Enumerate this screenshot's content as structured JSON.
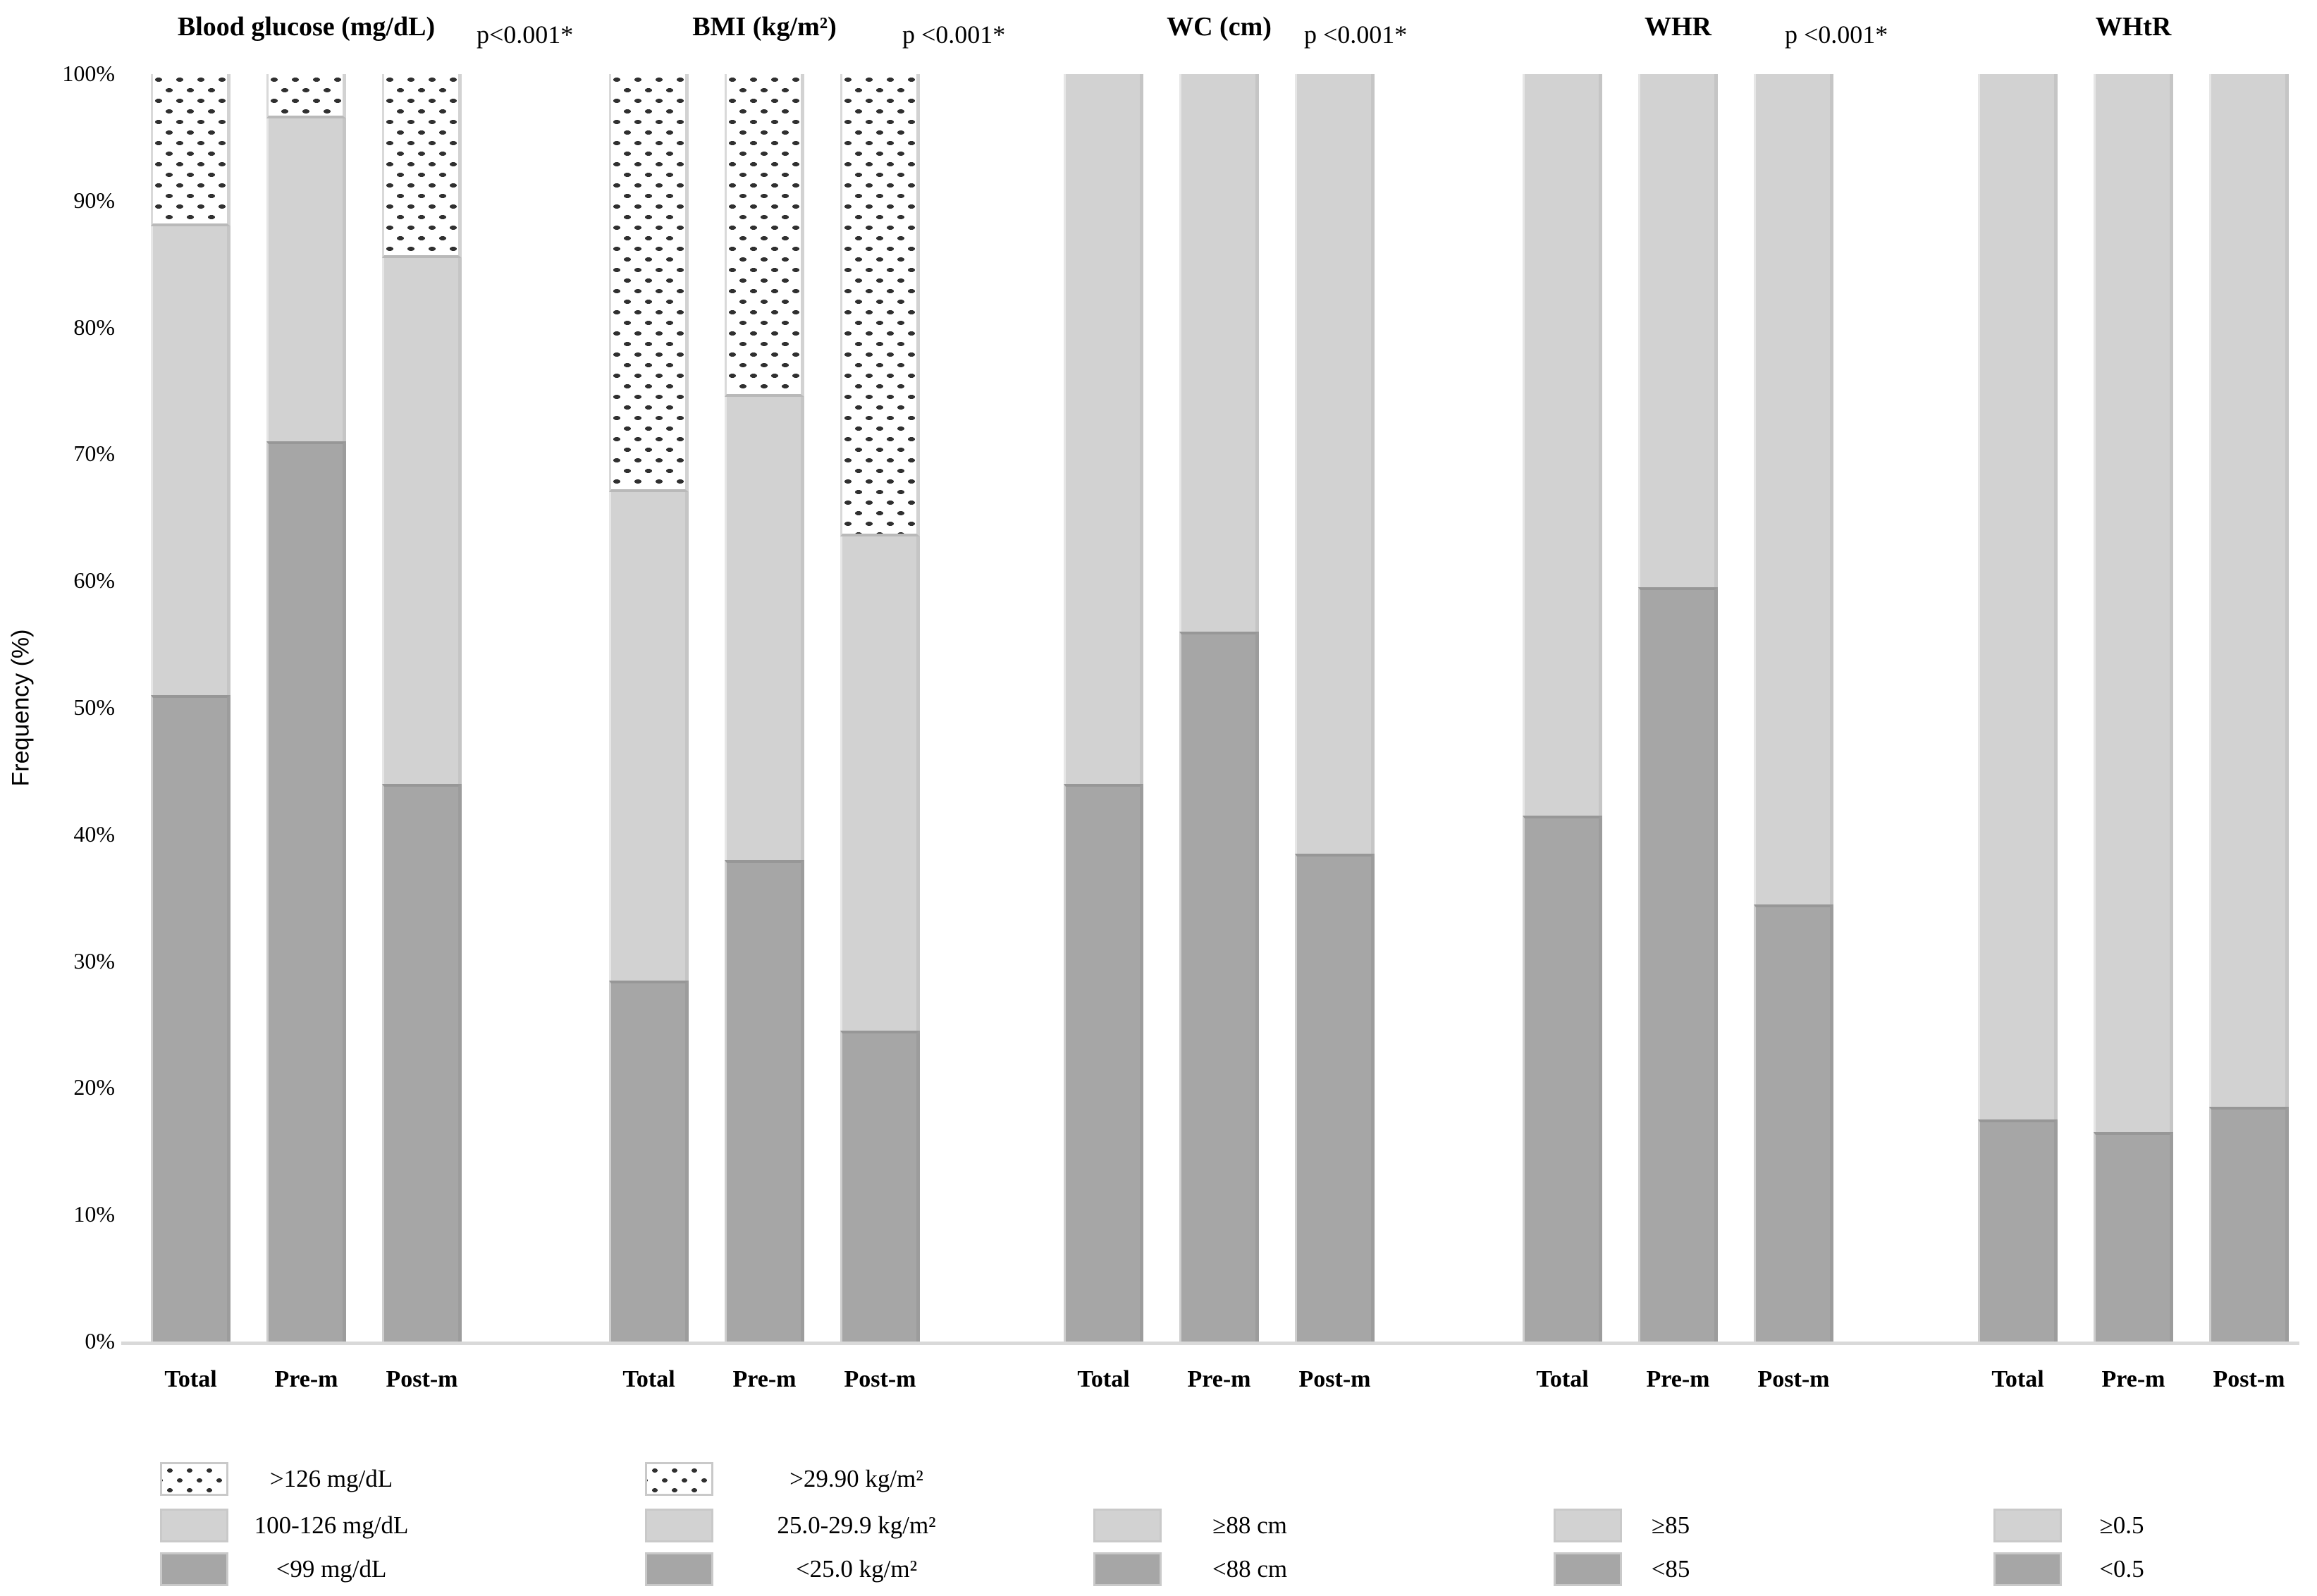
{
  "chart_data": {
    "type": "bar",
    "stacked": true,
    "title": "",
    "xlabel": "",
    "ylabel": "Frequency (%)",
    "ylim": [
      0,
      100
    ],
    "grid": false,
    "legend_position": "bottom",
    "ytick_labels": [
      "100%",
      "90%",
      "80%",
      "70%",
      "60%",
      "50%",
      "40%",
      "30%",
      "20%",
      "10%",
      "0%"
    ],
    "categories": [
      "Total",
      "Pre-m",
      "Post-m"
    ],
    "panels": [
      {
        "title": "Blood glucose (mg/dL)",
        "p_value": "p<0.001*",
        "series": [
          {
            "name": "<99 mg/dL",
            "style": "dark",
            "values": [
              51,
              71,
              44
            ]
          },
          {
            "name": "100-126 mg/dL",
            "style": "light",
            "values": [
              37,
              25.5,
              41.5
            ]
          },
          {
            "name": ">126 mg/dL",
            "style": "dotted",
            "values": [
              12,
              3.5,
              14.5
            ]
          }
        ]
      },
      {
        "title": "BMI (kg/m²)",
        "p_value": "p <0.001*",
        "series": [
          {
            "name": "<25.0 kg/m²",
            "style": "dark",
            "values": [
              28.5,
              38,
              24.5
            ]
          },
          {
            "name": "25.0-29.9 kg/m²",
            "style": "light",
            "values": [
              38.5,
              36.5,
              39
            ]
          },
          {
            "name": ">29.90 kg/m²",
            "style": "dotted",
            "values": [
              33,
              25.5,
              36.5
            ]
          }
        ]
      },
      {
        "title": "WC (cm)",
        "p_value": "p <0.001*",
        "series": [
          {
            "name": "<88 cm",
            "style": "dark",
            "values": [
              44,
              56,
              38.5
            ]
          },
          {
            "name": "≥88 cm",
            "style": "light",
            "values": [
              56,
              44,
              61.5
            ]
          }
        ]
      },
      {
        "title": "WHR",
        "p_value": "p <0.001*",
        "series": [
          {
            "name": "<85",
            "style": "dark",
            "values": [
              41.5,
              59.5,
              34.5
            ]
          },
          {
            "name": "≥85",
            "style": "light",
            "values": [
              58.5,
              40.5,
              65.5
            ]
          }
        ]
      },
      {
        "title": "WHtR",
        "p_value": null,
        "series": [
          {
            "name": "<0.5",
            "style": "dark",
            "values": [
              17.5,
              16.5,
              18.5
            ]
          },
          {
            "name": "≥0.5",
            "style": "light",
            "values": [
              82.5,
              83.5,
              81.5
            ]
          }
        ]
      }
    ]
  },
  "colors": {
    "dark_fill": "#a6a6a6",
    "light_fill": "#d2d2d2",
    "dot_color": "#303030",
    "axis_line": "#d9d9d9"
  }
}
